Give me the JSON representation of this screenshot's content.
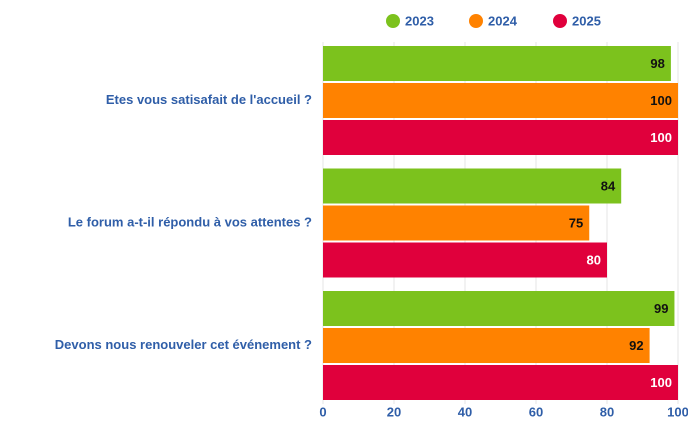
{
  "chart_data": {
    "type": "barh",
    "categories": [
      "Etes vous satisafait de l'accueil ?",
      "Le forum a-t-il répondu à vos attentes ?",
      "Devons nous renouveler cet événement ?"
    ],
    "series": [
      {
        "name": "2023",
        "color": "#7cc21d",
        "values": [
          98,
          84,
          99
        ]
      },
      {
        "name": "2024",
        "color": "#ff8200",
        "values": [
          100,
          75,
          92
        ]
      },
      {
        "name": "2025",
        "color": "#e0003c",
        "values": [
          100,
          80,
          100
        ]
      }
    ],
    "xlim": [
      0,
      100
    ],
    "xticks": [
      0,
      20,
      40,
      60,
      80,
      100
    ],
    "grid": true,
    "legend": "top"
  }
}
